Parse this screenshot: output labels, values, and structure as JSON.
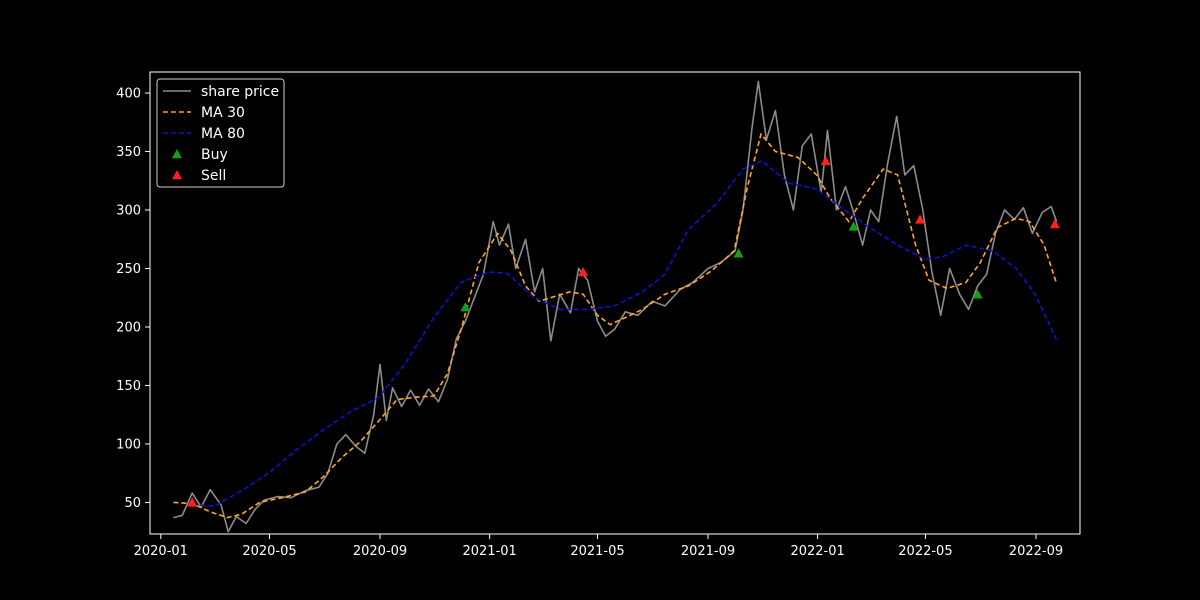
{
  "chart_data": {
    "type": "line",
    "background": "#000000",
    "axes_color": "#ffffff",
    "x_axis": {
      "type": "date",
      "range": [
        "2019-12-20",
        "2022-10-20"
      ],
      "ticks": [
        "2020-01",
        "2020-05",
        "2020-09",
        "2021-01",
        "2021-05",
        "2021-09",
        "2022-01",
        "2022-05",
        "2022-09"
      ]
    },
    "y_axis": {
      "range": [
        23,
        418
      ],
      "ticks": [
        50,
        100,
        150,
        200,
        250,
        300,
        350,
        400
      ]
    },
    "grid": false,
    "legend_position": "top-left",
    "series": [
      {
        "name": "share price",
        "style": "solid",
        "color": "#8c8c8c",
        "points": [
          [
            "2020-01-15",
            37
          ],
          [
            "2020-01-25",
            39
          ],
          [
            "2020-02-05",
            58
          ],
          [
            "2020-02-15",
            46
          ],
          [
            "2020-02-25",
            61
          ],
          [
            "2020-03-08",
            48
          ],
          [
            "2020-03-16",
            25
          ],
          [
            "2020-03-25",
            38
          ],
          [
            "2020-04-05",
            32
          ],
          [
            "2020-04-15",
            44
          ],
          [
            "2020-04-25",
            52
          ],
          [
            "2020-05-10",
            55
          ],
          [
            "2020-05-25",
            54
          ],
          [
            "2020-06-10",
            60
          ],
          [
            "2020-06-25",
            63
          ],
          [
            "2020-07-05",
            75
          ],
          [
            "2020-07-15",
            100
          ],
          [
            "2020-07-25",
            108
          ],
          [
            "2020-08-05",
            98
          ],
          [
            "2020-08-15",
            92
          ],
          [
            "2020-08-25",
            125
          ],
          [
            "2020-09-01",
            168
          ],
          [
            "2020-09-08",
            120
          ],
          [
            "2020-09-15",
            148
          ],
          [
            "2020-09-25",
            132
          ],
          [
            "2020-10-05",
            146
          ],
          [
            "2020-10-15",
            133
          ],
          [
            "2020-10-25",
            147
          ],
          [
            "2020-11-05",
            136
          ],
          [
            "2020-11-15",
            155
          ],
          [
            "2020-11-25",
            190
          ],
          [
            "2020-12-05",
            205
          ],
          [
            "2020-12-15",
            225
          ],
          [
            "2020-12-25",
            245
          ],
          [
            "2021-01-05",
            290
          ],
          [
            "2021-01-12",
            270
          ],
          [
            "2021-01-22",
            288
          ],
          [
            "2021-01-30",
            250
          ],
          [
            "2021-02-10",
            275
          ],
          [
            "2021-02-20",
            230
          ],
          [
            "2021-03-01",
            250
          ],
          [
            "2021-03-10",
            188
          ],
          [
            "2021-03-20",
            228
          ],
          [
            "2021-04-01",
            212
          ],
          [
            "2021-04-10",
            250
          ],
          [
            "2021-04-20",
            240
          ],
          [
            "2021-05-01",
            205
          ],
          [
            "2021-05-10",
            192
          ],
          [
            "2021-05-20",
            198
          ],
          [
            "2021-06-01",
            213
          ],
          [
            "2021-06-15",
            210
          ],
          [
            "2021-07-01",
            222
          ],
          [
            "2021-07-15",
            218
          ],
          [
            "2021-08-01",
            232
          ],
          [
            "2021-08-15",
            238
          ],
          [
            "2021-09-01",
            250
          ],
          [
            "2021-09-15",
            255
          ],
          [
            "2021-10-01",
            265
          ],
          [
            "2021-10-10",
            300
          ],
          [
            "2021-10-20",
            370
          ],
          [
            "2021-10-27",
            410
          ],
          [
            "2021-11-05",
            360
          ],
          [
            "2021-11-15",
            385
          ],
          [
            "2021-11-25",
            330
          ],
          [
            "2021-12-05",
            300
          ],
          [
            "2021-12-15",
            355
          ],
          [
            "2021-12-25",
            365
          ],
          [
            "2022-01-05",
            315
          ],
          [
            "2022-01-12",
            368
          ],
          [
            "2022-01-22",
            300
          ],
          [
            "2022-02-01",
            320
          ],
          [
            "2022-02-10",
            298
          ],
          [
            "2022-02-20",
            270
          ],
          [
            "2022-03-01",
            300
          ],
          [
            "2022-03-10",
            290
          ],
          [
            "2022-03-20",
            340
          ],
          [
            "2022-03-30",
            380
          ],
          [
            "2022-04-08",
            330
          ],
          [
            "2022-04-18",
            338
          ],
          [
            "2022-04-28",
            300
          ],
          [
            "2022-05-08",
            248
          ],
          [
            "2022-05-18",
            210
          ],
          [
            "2022-05-28",
            250
          ],
          [
            "2022-06-08",
            228
          ],
          [
            "2022-06-18",
            215
          ],
          [
            "2022-06-28",
            235
          ],
          [
            "2022-07-08",
            245
          ],
          [
            "2022-07-18",
            280
          ],
          [
            "2022-07-28",
            300
          ],
          [
            "2022-08-08",
            292
          ],
          [
            "2022-08-18",
            302
          ],
          [
            "2022-08-28",
            280
          ],
          [
            "2022-09-08",
            298
          ],
          [
            "2022-09-18",
            303
          ],
          [
            "2022-09-24",
            290
          ]
        ]
      },
      {
        "name": "MA 30",
        "style": "dashed",
        "color": "#ffa726",
        "points": [
          [
            "2020-01-15",
            50
          ],
          [
            "2020-02-05",
            49
          ],
          [
            "2020-02-25",
            42
          ],
          [
            "2020-03-15",
            37
          ],
          [
            "2020-03-31",
            40
          ],
          [
            "2020-04-20",
            50
          ],
          [
            "2020-05-15",
            54
          ],
          [
            "2020-06-10",
            59
          ],
          [
            "2020-06-30",
            72
          ],
          [
            "2020-07-20",
            88
          ],
          [
            "2020-08-10",
            102
          ],
          [
            "2020-08-31",
            120
          ],
          [
            "2020-09-20",
            138
          ],
          [
            "2020-10-10",
            140
          ],
          [
            "2020-10-31",
            141
          ],
          [
            "2020-11-15",
            160
          ],
          [
            "2020-12-01",
            200
          ],
          [
            "2020-12-20",
            255
          ],
          [
            "2021-01-10",
            280
          ],
          [
            "2021-01-25",
            265
          ],
          [
            "2021-02-10",
            235
          ],
          [
            "2021-02-25",
            222
          ],
          [
            "2021-03-10",
            225
          ],
          [
            "2021-03-31",
            230
          ],
          [
            "2021-04-15",
            228
          ],
          [
            "2021-05-01",
            210
          ],
          [
            "2021-05-15",
            202
          ],
          [
            "2021-06-01",
            208
          ],
          [
            "2021-06-20",
            215
          ],
          [
            "2021-07-15",
            228
          ],
          [
            "2021-08-10",
            235
          ],
          [
            "2021-09-05",
            248
          ],
          [
            "2021-09-30",
            265
          ],
          [
            "2021-10-15",
            320
          ],
          [
            "2021-10-30",
            365
          ],
          [
            "2021-11-15",
            350
          ],
          [
            "2021-12-10",
            345
          ],
          [
            "2021-12-31",
            330
          ],
          [
            "2022-01-15",
            310
          ],
          [
            "2022-02-05",
            290
          ],
          [
            "2022-02-20",
            310
          ],
          [
            "2022-03-15",
            335
          ],
          [
            "2022-03-31",
            330
          ],
          [
            "2022-04-20",
            270
          ],
          [
            "2022-05-05",
            240
          ],
          [
            "2022-05-25",
            233
          ],
          [
            "2022-06-15",
            238
          ],
          [
            "2022-07-01",
            255
          ],
          [
            "2022-07-20",
            285
          ],
          [
            "2022-08-10",
            293
          ],
          [
            "2022-08-25",
            290
          ],
          [
            "2022-09-10",
            270
          ],
          [
            "2022-09-24",
            237
          ]
        ]
      },
      {
        "name": "MA 80",
        "style": "dashed",
        "color": "#0d12d0",
        "points": [
          [
            "2020-02-05",
            48
          ],
          [
            "2020-03-01",
            47
          ],
          [
            "2020-03-31",
            60
          ],
          [
            "2020-04-30",
            75
          ],
          [
            "2020-05-31",
            95
          ],
          [
            "2020-06-30",
            112
          ],
          [
            "2020-07-31",
            128
          ],
          [
            "2020-08-31",
            140
          ],
          [
            "2020-09-30",
            170
          ],
          [
            "2020-10-31",
            208
          ],
          [
            "2020-11-30",
            238
          ],
          [
            "2020-12-31",
            247
          ],
          [
            "2021-01-20",
            246
          ],
          [
            "2021-02-20",
            225
          ],
          [
            "2021-03-20",
            215
          ],
          [
            "2021-04-20",
            215
          ],
          [
            "2021-05-20",
            218
          ],
          [
            "2021-06-20",
            230
          ],
          [
            "2021-07-15",
            245
          ],
          [
            "2021-08-10",
            283
          ],
          [
            "2021-09-10",
            305
          ],
          [
            "2021-10-10",
            335
          ],
          [
            "2021-10-31",
            342
          ],
          [
            "2021-11-30",
            323
          ],
          [
            "2021-12-31",
            318
          ],
          [
            "2022-01-31",
            300
          ],
          [
            "2022-02-28",
            285
          ],
          [
            "2022-03-31",
            270
          ],
          [
            "2022-04-30",
            258
          ],
          [
            "2022-05-20",
            260
          ],
          [
            "2022-06-15",
            270
          ],
          [
            "2022-07-15",
            265
          ],
          [
            "2022-08-10",
            250
          ],
          [
            "2022-08-31",
            228
          ],
          [
            "2022-09-24",
            189
          ]
        ]
      }
    ],
    "markers": [
      {
        "name": "Buy",
        "shape": "triangle-up",
        "color": "#1a9e1a",
        "points": [
          [
            "2020-12-05",
            217
          ],
          [
            "2021-10-05",
            263
          ],
          [
            "2022-02-10",
            286
          ],
          [
            "2022-06-28",
            228
          ]
        ]
      },
      {
        "name": "Sell",
        "shape": "triangle-up",
        "color": "#ff2020",
        "points": [
          [
            "2020-02-05",
            50
          ],
          [
            "2021-04-15",
            247
          ],
          [
            "2022-01-10",
            342
          ],
          [
            "2022-04-25",
            292
          ],
          [
            "2022-09-22",
            288
          ]
        ]
      }
    ]
  }
}
